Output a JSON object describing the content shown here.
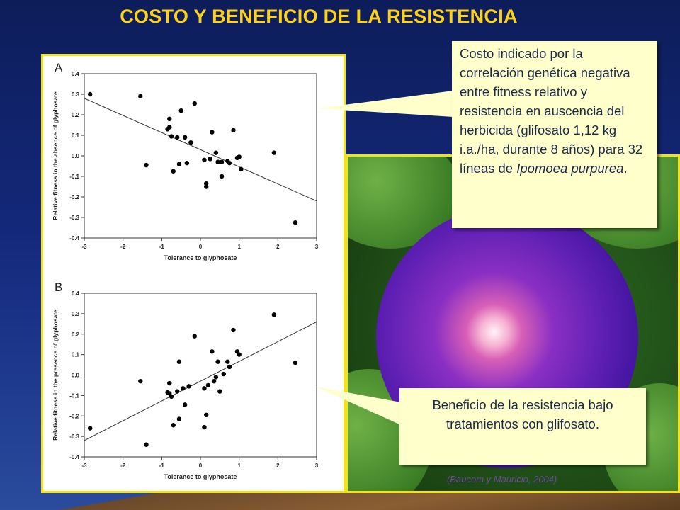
{
  "slide": {
    "title": "COSTO Y BENEFICIO DE LA RESISTENCIA",
    "callout_cost_pre": "Costo indicado por la correlación genética negativa entre fitness relativo y resistencia en auscencia del herbicida (glifosato 1,12 kg i.a./ha, durante 8 años) para 32 líneas de ",
    "callout_cost_species": "Ipomoea purpurea",
    "callout_cost_post": ".",
    "callout_benefit": "Beneficio de la resistencia bajo tratamientos con glifosato.",
    "citation": "(Baucom y Mauricio, 2004)"
  },
  "colors": {
    "title": "#ffd21a",
    "frame": "#f3e21a",
    "callout_bg": "#ffffcc",
    "points": "#000000"
  },
  "chart_data": [
    {
      "type": "scatter",
      "panel_label": "A",
      "xlabel": "Tolerance to glyphosate",
      "ylabel": "Relative fitness in the absence of glyphosate",
      "xlim": [
        -3,
        3
      ],
      "ylim": [
        -0.4,
        0.4
      ],
      "xticks": [
        -3,
        -2,
        -1,
        0,
        1,
        2,
        3
      ],
      "yticks": [
        0.4,
        0.3,
        0.2,
        0.1,
        0.0,
        -0.1,
        -0.2,
        -0.3,
        -0.4
      ],
      "trendline": [
        [
          -3,
          0.28
        ],
        [
          3,
          -0.22
        ]
      ],
      "points": [
        [
          -2.85,
          0.3
        ],
        [
          -1.55,
          0.29
        ],
        [
          -1.4,
          -0.045
        ],
        [
          -0.8,
          0.18
        ],
        [
          -0.8,
          0.14
        ],
        [
          -0.85,
          0.13
        ],
        [
          -0.75,
          0.095
        ],
        [
          -0.6,
          0.09
        ],
        [
          -0.5,
          0.22
        ],
        [
          -0.4,
          0.09
        ],
        [
          -0.25,
          0.065
        ],
        [
          -0.7,
          -0.075
        ],
        [
          -0.55,
          -0.04
        ],
        [
          -0.35,
          -0.035
        ],
        [
          -0.15,
          0.255
        ],
        [
          0.1,
          -0.02
        ],
        [
          0.15,
          -0.135
        ],
        [
          0.15,
          -0.15
        ],
        [
          0.25,
          -0.015
        ],
        [
          0.3,
          0.115
        ],
        [
          0.4,
          0.015
        ],
        [
          0.45,
          -0.03
        ],
        [
          0.55,
          -0.1
        ],
        [
          0.7,
          -0.025
        ],
        [
          0.75,
          -0.035
        ],
        [
          0.85,
          0.125
        ],
        [
          0.95,
          -0.01
        ],
        [
          1.0,
          -0.005
        ],
        [
          1.05,
          -0.065
        ],
        [
          1.9,
          0.015
        ],
        [
          2.45,
          -0.325
        ],
        [
          0.55,
          -0.03
        ]
      ]
    },
    {
      "type": "scatter",
      "panel_label": "B",
      "xlabel": "Tolerance to glyphosate",
      "ylabel": "Relative fitness in the presence of glyphosate",
      "xlim": [
        -3,
        3
      ],
      "ylim": [
        -0.4,
        0.4
      ],
      "xticks": [
        -3,
        -2,
        -1,
        0,
        1,
        2,
        3
      ],
      "yticks": [
        0.4,
        0.3,
        0.2,
        0.1,
        0.0,
        -0.1,
        -0.2,
        -0.3,
        -0.4
      ],
      "trendline": [
        [
          -3,
          -0.32
        ],
        [
          3,
          0.26
        ]
      ],
      "points": [
        [
          -2.85,
          -0.26
        ],
        [
          -1.55,
          -0.03
        ],
        [
          -1.4,
          -0.34
        ],
        [
          -0.85,
          -0.085
        ],
        [
          -0.8,
          -0.04
        ],
        [
          -0.8,
          -0.09
        ],
        [
          -0.75,
          -0.105
        ],
        [
          -0.6,
          -0.08
        ],
        [
          -0.7,
          -0.245
        ],
        [
          -0.55,
          -0.215
        ],
        [
          -0.55,
          0.065
        ],
        [
          -0.45,
          -0.065
        ],
        [
          -0.4,
          -0.145
        ],
        [
          -0.3,
          -0.055
        ],
        [
          -0.15,
          0.19
        ],
        [
          0.1,
          -0.065
        ],
        [
          0.1,
          -0.255
        ],
        [
          0.15,
          -0.195
        ],
        [
          0.2,
          -0.05
        ],
        [
          0.3,
          0.115
        ],
        [
          0.35,
          -0.03
        ],
        [
          0.45,
          0.065
        ],
        [
          0.5,
          -0.08
        ],
        [
          0.6,
          0.005
        ],
        [
          0.7,
          0.065
        ],
        [
          0.75,
          0.04
        ],
        [
          0.85,
          0.22
        ],
        [
          0.95,
          0.115
        ],
        [
          1.0,
          0.1
        ],
        [
          1.9,
          0.295
        ],
        [
          2.45,
          0.06
        ],
        [
          0.4,
          -0.01
        ]
      ]
    }
  ]
}
